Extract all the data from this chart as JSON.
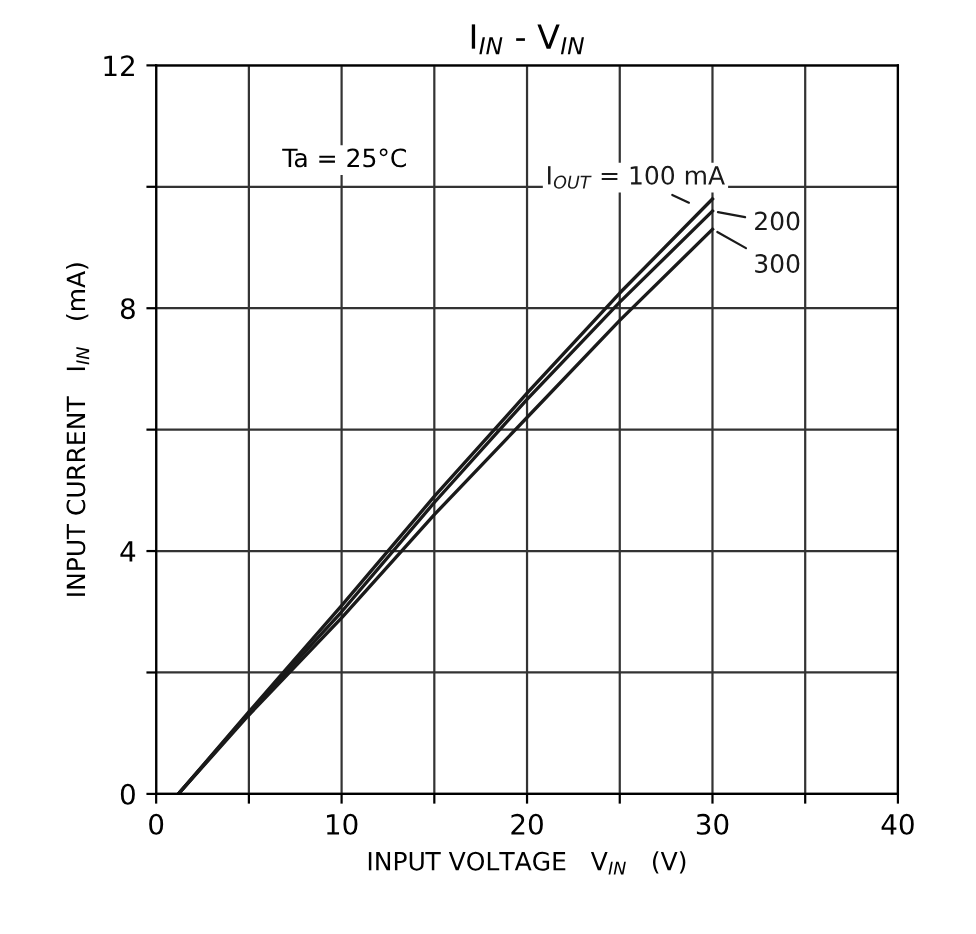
{
  "chart_data": {
    "type": "line",
    "title": "I$_{IN}$ - V$_{IN}$",
    "xlabel": "INPUT VOLTAGE   V$_{IN}$   (V)",
    "ylabel": "INPUT CURRENT   I$_{IN}$   (mA)",
    "xlim": [
      0,
      40
    ],
    "ylim": [
      0,
      12
    ],
    "xticks": [
      0,
      {
        "value": 5,
        "label": null
      },
      10,
      {
        "value": 15,
        "label": null
      },
      20,
      {
        "value": 25,
        "label": null
      },
      30,
      {
        "value": 35,
        "label": null
      },
      40
    ],
    "yticks": [
      0,
      {
        "value": 2,
        "label": null
      },
      4,
      {
        "value": 6,
        "label": null
      },
      8,
      {
        "value": 10,
        "label": null
      },
      12
    ],
    "grid": true,
    "legend": "right",
    "marker": "none",
    "line_style": "solid",
    "annotations": [
      "Ta = 25°C"
    ],
    "series": [
      {
        "name": "I$_{OUT}$ = 100 mA",
        "color": "#1a1a1a",
        "x": [
          1.2,
          5,
          10,
          15,
          20,
          25,
          30
        ],
        "values": [
          0,
          1.35,
          3.1,
          4.9,
          6.6,
          8.25,
          9.8
        ]
      },
      {
        "name": "200",
        "color": "#1a1a1a",
        "x": [
          1.2,
          5,
          10,
          15,
          20,
          25,
          30
        ],
        "values": [
          0,
          1.33,
          3.0,
          4.8,
          6.5,
          8.1,
          9.6
        ]
      },
      {
        "name": "300",
        "color": "#1a1a1a",
        "x": [
          1.2,
          5,
          10,
          15,
          20,
          25,
          30
        ],
        "values": [
          0,
          1.3,
          2.9,
          4.6,
          6.2,
          7.8,
          9.3
        ]
      }
    ]
  }
}
